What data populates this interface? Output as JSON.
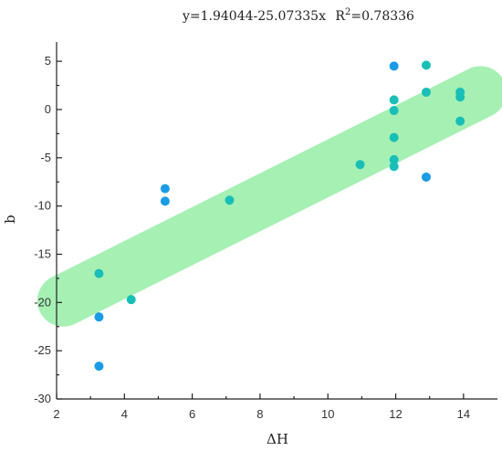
{
  "chart_data": {
    "type": "scatter",
    "title": "y=1.94044-25.07335x",
    "r2_label": "R",
    "r2_sup": "2",
    "r2_value": "=0.78336",
    "xlabel": "ΔH",
    "ylabel": "b",
    "xlim": [
      2,
      15
    ],
    "ylim": [
      -30,
      7
    ],
    "x_ticks": [
      2,
      4,
      6,
      8,
      10,
      12,
      14
    ],
    "y_ticks": [
      -30,
      -25,
      -20,
      -15,
      -10,
      -5,
      0,
      5
    ],
    "grid": false,
    "colors": {
      "point_blue": "#1a9be6",
      "point_teal": "#19bfb6",
      "band": "#a6f0b4",
      "axis": "#222222"
    },
    "band": {
      "description_free": true,
      "start": [
        2.2,
        -19.8
      ],
      "end": [
        14.5,
        1.8
      ],
      "half_width_data_y": 2.7
    },
    "series": [
      {
        "color_key": "point_blue",
        "points": [
          [
            3.25,
            -26.6
          ],
          [
            3.25,
            -21.5
          ],
          [
            5.2,
            -8.2
          ],
          [
            5.2,
            -9.5
          ],
          [
            11.95,
            4.5
          ],
          [
            12.9,
            -7.0
          ]
        ]
      },
      {
        "color_key": "point_teal",
        "points": [
          [
            3.25,
            -17.0
          ],
          [
            4.2,
            -19.7
          ],
          [
            7.1,
            -9.4
          ],
          [
            10.95,
            -5.7
          ],
          [
            11.95,
            1.0
          ],
          [
            11.95,
            -0.1
          ],
          [
            11.95,
            -2.9
          ],
          [
            11.95,
            -5.2
          ],
          [
            11.95,
            -5.9
          ],
          [
            12.9,
            4.6
          ],
          [
            12.9,
            1.8
          ],
          [
            13.9,
            1.8
          ],
          [
            13.9,
            1.3
          ],
          [
            13.9,
            -1.2
          ]
        ]
      }
    ]
  }
}
